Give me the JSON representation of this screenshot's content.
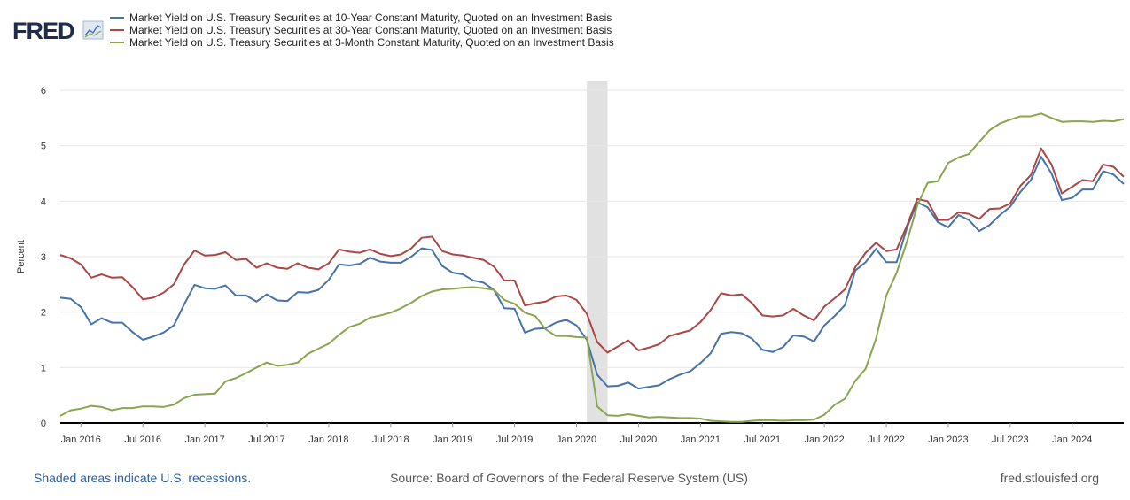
{
  "chart_data": {
    "type": "line",
    "logo": "FRED",
    "y_label": "Percent",
    "x": [
      "2015-11",
      "2015-12",
      "2016-01",
      "2016-02",
      "2016-03",
      "2016-04",
      "2016-05",
      "2016-06",
      "2016-07",
      "2016-08",
      "2016-09",
      "2016-10",
      "2016-11",
      "2016-12",
      "2017-01",
      "2017-02",
      "2017-03",
      "2017-04",
      "2017-05",
      "2017-06",
      "2017-07",
      "2017-08",
      "2017-09",
      "2017-10",
      "2017-11",
      "2017-12",
      "2018-01",
      "2018-02",
      "2018-03",
      "2018-04",
      "2018-05",
      "2018-06",
      "2018-07",
      "2018-08",
      "2018-09",
      "2018-10",
      "2018-11",
      "2018-12",
      "2019-01",
      "2019-02",
      "2019-03",
      "2019-04",
      "2019-05",
      "2019-06",
      "2019-07",
      "2019-08",
      "2019-09",
      "2019-10",
      "2019-11",
      "2019-12",
      "2020-01",
      "2020-02",
      "2020-03",
      "2020-04",
      "2020-05",
      "2020-06",
      "2020-07",
      "2020-08",
      "2020-09",
      "2020-10",
      "2020-11",
      "2020-12",
      "2021-01",
      "2021-02",
      "2021-03",
      "2021-04",
      "2021-05",
      "2021-06",
      "2021-07",
      "2021-08",
      "2021-09",
      "2021-10",
      "2021-11",
      "2021-12",
      "2022-01",
      "2022-02",
      "2022-03",
      "2022-04",
      "2022-05",
      "2022-06",
      "2022-07",
      "2022-08",
      "2022-09",
      "2022-10",
      "2022-11",
      "2022-12",
      "2023-01",
      "2023-02",
      "2023-03",
      "2023-04",
      "2023-05",
      "2023-06",
      "2023-07",
      "2023-08",
      "2023-09",
      "2023-10",
      "2023-11",
      "2023-12",
      "2024-01",
      "2024-02",
      "2024-03",
      "2024-04",
      "2024-05",
      "2024-06"
    ],
    "series": [
      {
        "name": "Market Yield on U.S. Treasury Securities at 10-Year Constant Maturity, Quoted on an Investment Basis",
        "color": "#4572a7",
        "values": [
          2.26,
          2.24,
          2.09,
          1.78,
          1.89,
          1.81,
          1.81,
          1.64,
          1.5,
          1.56,
          1.63,
          1.76,
          2.14,
          2.49,
          2.43,
          2.42,
          2.48,
          2.3,
          2.3,
          2.19,
          2.32,
          2.21,
          2.2,
          2.36,
          2.35,
          2.4,
          2.58,
          2.86,
          2.84,
          2.87,
          2.98,
          2.91,
          2.89,
          2.89,
          3.0,
          3.15,
          3.12,
          2.83,
          2.71,
          2.68,
          2.57,
          2.53,
          2.4,
          2.07,
          2.06,
          1.63,
          1.7,
          1.71,
          1.81,
          1.86,
          1.76,
          1.5,
          0.87,
          0.66,
          0.67,
          0.73,
          0.62,
          0.65,
          0.68,
          0.79,
          0.87,
          0.93,
          1.08,
          1.26,
          1.61,
          1.64,
          1.62,
          1.52,
          1.32,
          1.28,
          1.37,
          1.58,
          1.56,
          1.47,
          1.76,
          1.93,
          2.13,
          2.75,
          2.9,
          3.14,
          2.9,
          2.9,
          3.52,
          3.98,
          3.89,
          3.62,
          3.53,
          3.75,
          3.66,
          3.46,
          3.57,
          3.75,
          3.9,
          4.17,
          4.38,
          4.8,
          4.5,
          4.02,
          4.06,
          4.21,
          4.21,
          4.54,
          4.48,
          4.31
        ]
      },
      {
        "name": "Market Yield on U.S. Treasury Securities at 30-Year Constant Maturity, Quoted on an Investment Basis",
        "color": "#aa4643",
        "values": [
          3.03,
          2.97,
          2.86,
          2.62,
          2.68,
          2.62,
          2.63,
          2.45,
          2.23,
          2.26,
          2.35,
          2.5,
          2.86,
          3.11,
          3.02,
          3.03,
          3.08,
          2.94,
          2.96,
          2.8,
          2.88,
          2.8,
          2.78,
          2.88,
          2.8,
          2.77,
          2.88,
          3.13,
          3.09,
          3.07,
          3.13,
          3.05,
          3.01,
          3.04,
          3.15,
          3.34,
          3.36,
          3.1,
          3.04,
          3.02,
          2.98,
          2.94,
          2.82,
          2.57,
          2.57,
          2.12,
          2.16,
          2.19,
          2.28,
          2.3,
          2.22,
          1.97,
          1.46,
          1.27,
          1.38,
          1.49,
          1.31,
          1.36,
          1.42,
          1.57,
          1.62,
          1.67,
          1.82,
          2.04,
          2.34,
          2.3,
          2.32,
          2.16,
          1.94,
          1.92,
          1.94,
          2.06,
          1.94,
          1.85,
          2.1,
          2.25,
          2.41,
          2.81,
          3.07,
          3.25,
          3.1,
          3.13,
          3.56,
          4.04,
          4.0,
          3.66,
          3.66,
          3.8,
          3.77,
          3.68,
          3.86,
          3.87,
          3.96,
          4.28,
          4.47,
          4.95,
          4.66,
          4.14,
          4.26,
          4.38,
          4.36,
          4.66,
          4.62,
          4.44
        ]
      },
      {
        "name": "Market Yield on U.S. Treasury Securities at 3-Month Constant Maturity, Quoted on an Investment Basis",
        "color": "#89a54e",
        "values": [
          0.13,
          0.23,
          0.26,
          0.31,
          0.29,
          0.23,
          0.27,
          0.27,
          0.3,
          0.3,
          0.29,
          0.33,
          0.45,
          0.51,
          0.52,
          0.53,
          0.75,
          0.81,
          0.9,
          1.0,
          1.09,
          1.03,
          1.05,
          1.09,
          1.25,
          1.34,
          1.43,
          1.59,
          1.73,
          1.79,
          1.9,
          1.94,
          1.99,
          2.07,
          2.17,
          2.29,
          2.37,
          2.41,
          2.42,
          2.44,
          2.45,
          2.43,
          2.4,
          2.22,
          2.15,
          1.99,
          1.93,
          1.69,
          1.57,
          1.57,
          1.55,
          1.54,
          0.3,
          0.14,
          0.13,
          0.16,
          0.13,
          0.1,
          0.11,
          0.1,
          0.09,
          0.09,
          0.08,
          0.04,
          0.03,
          0.02,
          0.02,
          0.04,
          0.05,
          0.05,
          0.04,
          0.05,
          0.05,
          0.06,
          0.15,
          0.33,
          0.44,
          0.76,
          0.98,
          1.52,
          2.3,
          2.71,
          3.27,
          3.92,
          4.33,
          4.36,
          4.69,
          4.79,
          4.85,
          5.07,
          5.28,
          5.4,
          5.47,
          5.53,
          5.53,
          5.58,
          5.5,
          5.43,
          5.44,
          5.44,
          5.43,
          5.45,
          5.44,
          5.48
        ]
      }
    ],
    "recessions": [
      {
        "start": "2020-02",
        "end": "2020-04"
      }
    ],
    "ylim": [
      0,
      6
    ],
    "yticks": [
      0,
      1,
      2,
      3,
      4,
      5,
      6
    ],
    "grid": true,
    "xlim": [
      "2015-11",
      "2024-06"
    ],
    "xticks": [
      {
        "value": "2016-01",
        "label": "Jan 2016"
      },
      {
        "value": "2016-07",
        "label": "Jul 2016"
      },
      {
        "value": "2017-01",
        "label": "Jan 2017"
      },
      {
        "value": "2017-07",
        "label": "Jul 2017"
      },
      {
        "value": "2018-01",
        "label": "Jan 2018"
      },
      {
        "value": "2018-07",
        "label": "Jul 2018"
      },
      {
        "value": "2019-01",
        "label": "Jan 2019"
      },
      {
        "value": "2019-07",
        "label": "Jul 2019"
      },
      {
        "value": "2020-01",
        "label": "Jan 2020"
      },
      {
        "value": "2020-07",
        "label": "Jul 2020"
      },
      {
        "value": "2021-01",
        "label": "Jan 2021"
      },
      {
        "value": "2021-07",
        "label": "Jul 2021"
      },
      {
        "value": "2022-01",
        "label": "Jan 2022"
      },
      {
        "value": "2022-07",
        "label": "Jul 2022"
      },
      {
        "value": "2023-01",
        "label": "Jan 2023"
      },
      {
        "value": "2023-07",
        "label": "Jul 2023"
      },
      {
        "value": "2024-01",
        "label": "Jan 2024"
      }
    ],
    "footer_left": "Shaded areas indicate U.S. recessions.",
    "footer_center": "Source: Board of Governors of the Federal Reserve System (US)",
    "footer_right": "fred.stlouisfed.org"
  }
}
